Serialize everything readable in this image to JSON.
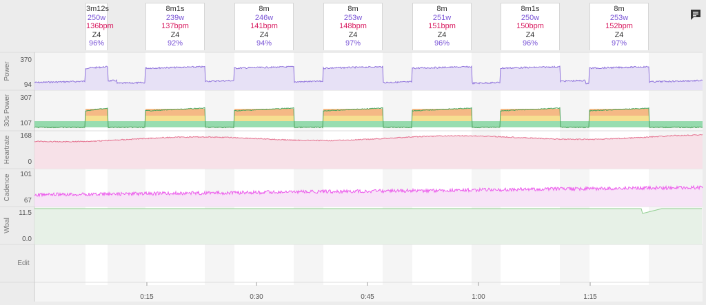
{
  "colors": {
    "power": "#8f72dc",
    "power_fill": "#e7e1f6",
    "heartrate": "#e57390",
    "heartrate_fill": "#f7e1e8",
    "cadence": "#ec5bec",
    "cadence_fill": "#f7e4f7",
    "wbal": "#8fce8f",
    "wbal_fill": "#e7f1e7",
    "zone_green": "#6ccf8f",
    "zone_yellow": "#f3d46b",
    "zone_orange": "#f2a25c",
    "zone_red": "#e3486b"
  },
  "icons": {
    "comment": "comment-icon"
  },
  "chart_data": {
    "type": "line",
    "x_unit": "h:mm",
    "x_ticks": [
      "0:15",
      "0:30",
      "0:45",
      "1:00",
      "1:15"
    ],
    "intervals": [
      {
        "duration": "3m12s",
        "power": "250w",
        "heartrate": "136bpm",
        "zone": "Z4",
        "percent": "96%"
      },
      {
        "duration": "8m1s",
        "power": "239w",
        "heartrate": "137bpm",
        "zone": "Z4",
        "percent": "92%"
      },
      {
        "duration": "8m",
        "power": "246w",
        "heartrate": "141bpm",
        "zone": "Z4",
        "percent": "94%"
      },
      {
        "duration": "8m",
        "power": "253w",
        "heartrate": "148bpm",
        "zone": "Z4",
        "percent": "97%"
      },
      {
        "duration": "8m",
        "power": "251w",
        "heartrate": "151bpm",
        "zone": "Z4",
        "percent": "96%"
      },
      {
        "duration": "8m1s",
        "power": "250w",
        "heartrate": "150bpm",
        "zone": "Z4",
        "percent": "96%"
      },
      {
        "duration": "8m",
        "power": "253w",
        "heartrate": "152bpm",
        "zone": "Z4",
        "percent": "97%"
      }
    ],
    "panels": [
      {
        "name": "Power",
        "ticks": [
          "370",
          "94"
        ]
      },
      {
        "name": "30s Power",
        "ticks": [
          "307",
          "107"
        ]
      },
      {
        "name": "Heartrate",
        "ticks": [
          "168",
          "0"
        ]
      },
      {
        "name": "Cadence",
        "ticks": [
          "101",
          "67"
        ]
      },
      {
        "name": "Wbal",
        "ticks": [
          "11.5",
          "0.0"
        ]
      },
      {
        "name": "Edit",
        "ticks": []
      }
    ]
  }
}
